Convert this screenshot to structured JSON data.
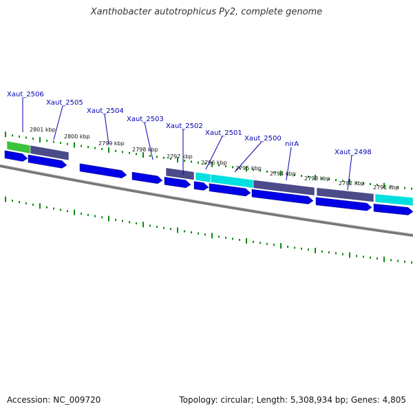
{
  "title": "Xanthobacter autotrophicus Py2, complete genome",
  "footer": {
    "accession": "Accession: NC_009720",
    "summary": "Topology: circular; Length: 5,308,934 bp; Genes: 4,805"
  },
  "kbp_labels": [
    "2801 kbp",
    "2800 kbp",
    "2799 kbp",
    "2798 kbp",
    "2797 kbp",
    "2796 kbp",
    "2795 kbp",
    "2794 kbp",
    "2793 kbp",
    "2792 kbp",
    "2791 kbp"
  ],
  "gene_labels": [
    "Xaut_2506",
    "Xaut_2505",
    "Xaut_2504",
    "Xaut_2503",
    "Xaut_2502",
    "Xaut_2501",
    "Xaut_2500",
    "nirA",
    "Xaut_2498"
  ],
  "colors": {
    "forward_gene": "#0000e6",
    "block_green": "#39c439",
    "block_purple": "#4b4b8a",
    "block_cyan": "#00e0e0",
    "tick": "#0a8a0a",
    "backbone": "#777777",
    "label": "#0000b0"
  }
}
